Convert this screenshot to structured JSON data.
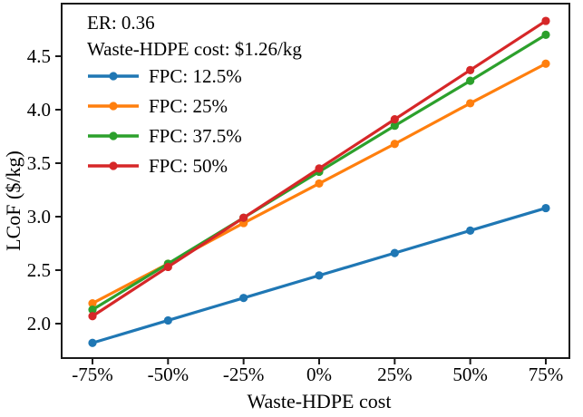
{
  "chart_data": {
    "type": "line",
    "annotations": [
      "ER: 0.36",
      "Waste-HDPE cost: $1.26/kg"
    ],
    "categories": [
      "-75%",
      "-50%",
      "-25%",
      "0%",
      "25%",
      "50%",
      "75%"
    ],
    "series": [
      {
        "name": "FPC: 12.5%",
        "color": "#1f77b4",
        "values": [
          1.82,
          2.03,
          2.24,
          2.45,
          2.66,
          2.87,
          3.08
        ]
      },
      {
        "name": "FPC: 25%",
        "color": "#ff7f0e",
        "values": [
          2.19,
          2.56,
          2.94,
          3.31,
          3.68,
          4.06,
          4.43
        ]
      },
      {
        "name": "FPC: 37.5%",
        "color": "#2ca02c",
        "values": [
          2.13,
          2.56,
          2.99,
          3.42,
          3.85,
          4.27,
          4.7
        ]
      },
      {
        "name": "FPC: 50%",
        "color": "#d62728",
        "values": [
          2.07,
          2.53,
          2.99,
          3.45,
          3.91,
          4.37,
          4.83
        ]
      }
    ],
    "xlabel": "Waste-HDPE cost",
    "ylabel": "LCoF ($/kg)",
    "yticks": [
      2.0,
      2.5,
      3.0,
      3.5,
      4.0,
      4.5
    ],
    "ylim": [
      1.68,
      5.0
    ],
    "xlim_categories": [
      "-85%",
      "83%"
    ],
    "legend_position": "upper-left",
    "grid": false,
    "marker": "circle",
    "axis_color": "#1a1a1a"
  }
}
